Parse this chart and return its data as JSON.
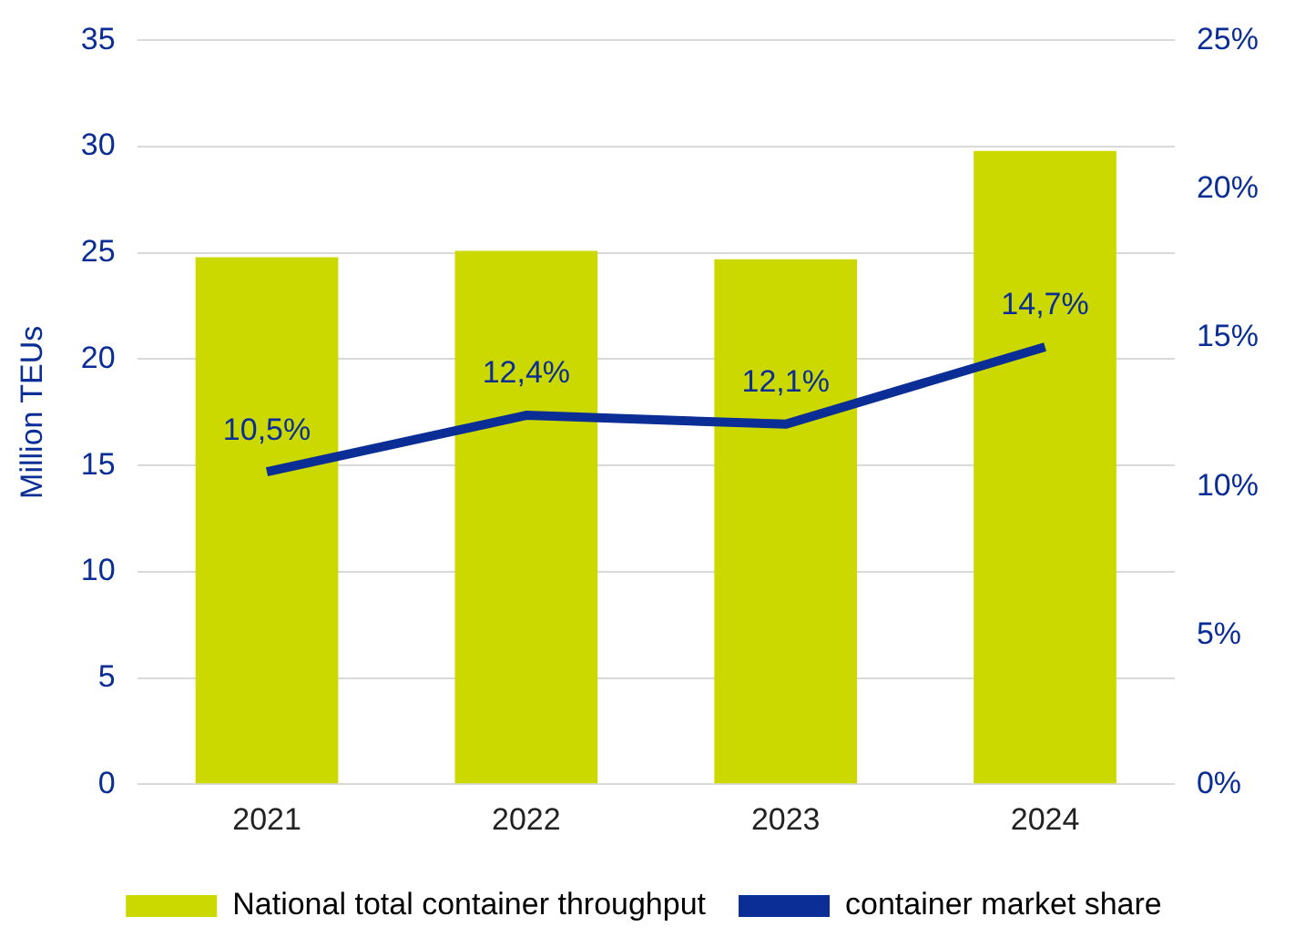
{
  "chart_data": {
    "type": "bar",
    "ylabel": "Million TEUs",
    "categories": [
      "2021",
      "2022",
      "2023",
      "2024"
    ],
    "series": [
      {
        "name": "National total container throughput",
        "color": "#ccd900",
        "values": [
          24.8,
          25.1,
          24.7,
          29.8
        ]
      },
      {
        "name": "container market share",
        "type": "line",
        "axis": "y2",
        "color": "#0a2d96",
        "values": [
          10.5,
          12.4,
          12.1,
          14.7
        ],
        "value_labels": [
          "10,5%",
          "12,4%",
          "12,1%",
          "14,7%"
        ]
      }
    ],
    "ylim": [
      0,
      35
    ],
    "yticks": [
      0,
      5,
      10,
      15,
      20,
      25,
      30,
      35
    ],
    "y2lim": [
      0,
      25
    ],
    "y2ticks": [
      {
        "value": 0,
        "label": "0%"
      },
      {
        "value": 5,
        "label": "5%"
      },
      {
        "value": 10,
        "label": "10%"
      },
      {
        "value": 15,
        "label": "15%"
      },
      {
        "value": 20,
        "label": "20%"
      },
      {
        "value": 25,
        "label": "25%"
      }
    ],
    "grid": "y",
    "legend": "bottom",
    "marker": "none",
    "line_style": "solid"
  }
}
